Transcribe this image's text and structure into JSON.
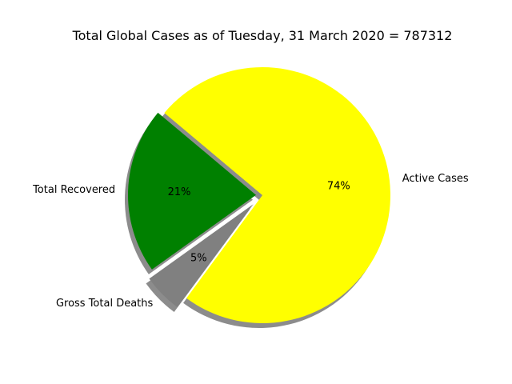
{
  "chart_data": {
    "type": "pie",
    "title": "Total Global Cases as of Tuesday, 31 March 2020 = 787312",
    "slices": [
      {
        "label": "Active Cases",
        "value": 74,
        "pct_label": "74%",
        "color": "#ffff00",
        "explode": 0
      },
      {
        "label": "Gross Total Deaths",
        "value": 5,
        "pct_label": "5%",
        "color": "#808080",
        "explode": 0.1
      },
      {
        "label": "Total Recovered",
        "value": 21,
        "pct_label": "21%",
        "color": "#008000",
        "explode": 0.05
      }
    ],
    "start_angle_deg": 140,
    "counterclock": false,
    "shadow": true
  }
}
